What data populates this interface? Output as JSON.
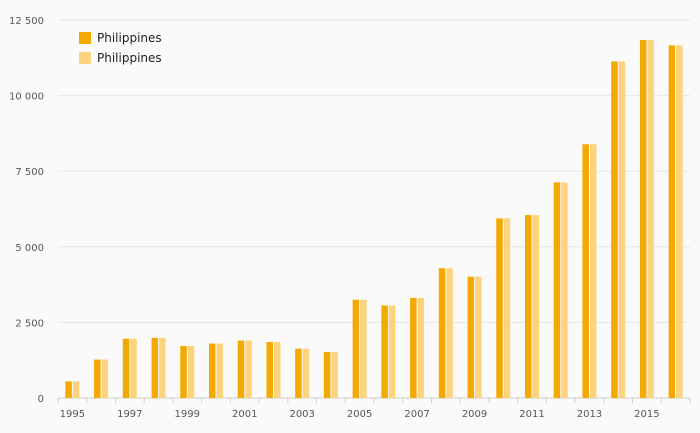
{
  "chart_data": {
    "type": "bar",
    "title": "",
    "xlabel": "",
    "ylabel": "",
    "ylim": [
      0,
      12500
    ],
    "y_ticks": [
      0,
      2500,
      5000,
      7500,
      10000,
      12500
    ],
    "y_tick_labels": [
      "0",
      "2 500",
      "5 000",
      "7 500",
      "10 000",
      "12 500"
    ],
    "x_tick_labels": [
      "1995",
      "1997",
      "1999",
      "2001",
      "2003",
      "2005",
      "2007",
      "2009",
      "2011",
      "2013",
      "2015"
    ],
    "categories": [
      "1995",
      "1996",
      "1997",
      "1998",
      "1999",
      "2000",
      "2001",
      "2002",
      "2003",
      "2004",
      "2005",
      "2006",
      "2007",
      "2008",
      "2009",
      "2010",
      "2011",
      "2012",
      "2013",
      "2014",
      "2015",
      "2016"
    ],
    "series": [
      {
        "name": "Philippines",
        "color": "#f5a800",
        "values": [
          550,
          1270,
          1960,
          1990,
          1720,
          1800,
          1900,
          1850,
          1630,
          1520,
          3250,
          3060,
          3310,
          4290,
          4010,
          5940,
          6050,
          7130,
          8390,
          11130,
          11840,
          11660
        ]
      },
      {
        "name": "Philippines",
        "color": "#fdd47d",
        "values": [
          550,
          1270,
          1960,
          1990,
          1720,
          1800,
          1900,
          1850,
          1630,
          1520,
          3250,
          3060,
          3310,
          4290,
          4010,
          5940,
          6050,
          7130,
          8390,
          11130,
          11840,
          11660
        ]
      }
    ],
    "grid": true,
    "legend_position": "top-left"
  }
}
